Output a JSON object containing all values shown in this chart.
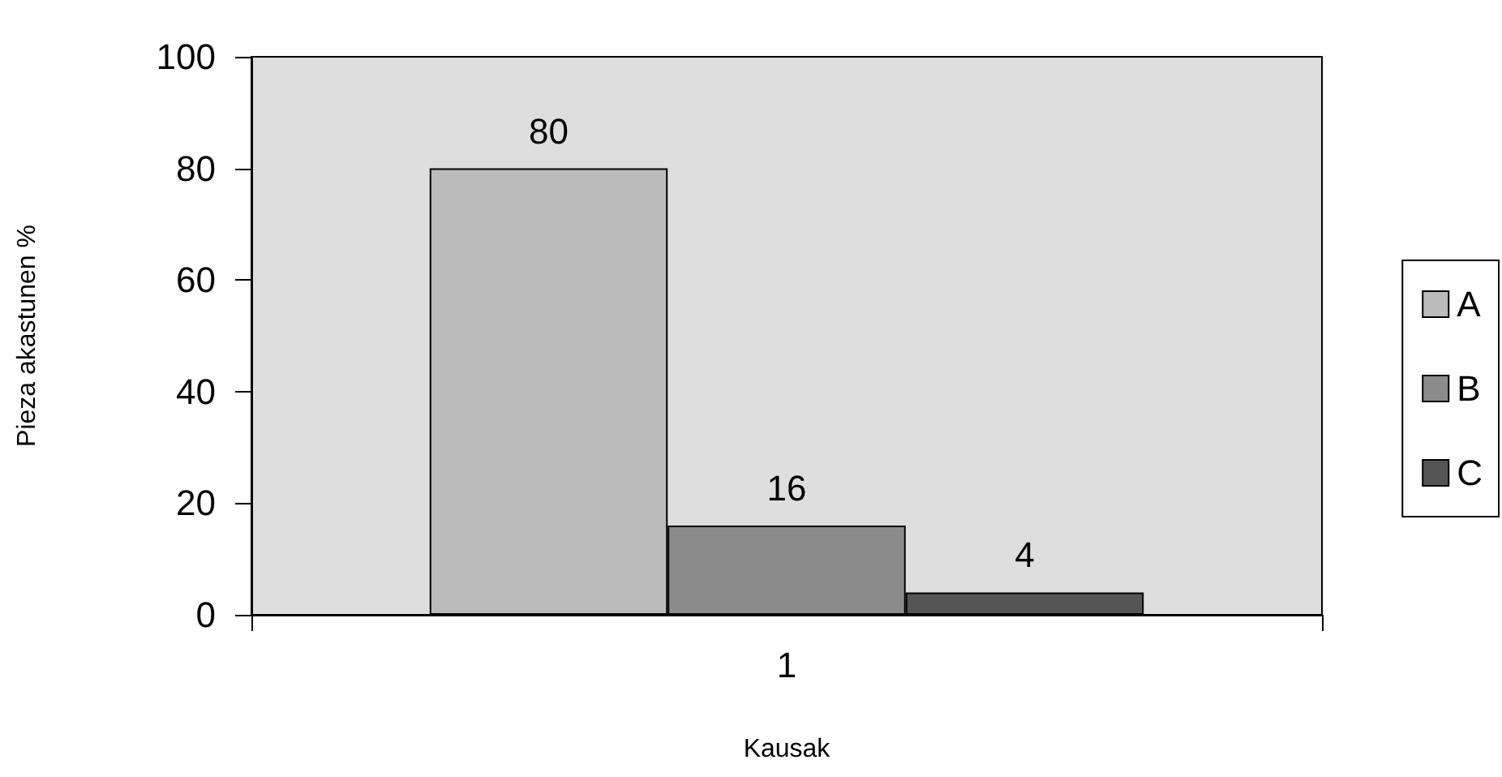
{
  "chart_data": {
    "type": "bar",
    "xlabel": "Kausak",
    "ylabel": "Pieza akastunen %",
    "categories": [
      "1"
    ],
    "series": [
      {
        "name": "A",
        "color": "#bbbbbb",
        "values": [
          80
        ]
      },
      {
        "name": "B",
        "color": "#8c8c8c",
        "values": [
          16
        ]
      },
      {
        "name": "C",
        "color": "#555555",
        "values": [
          4
        ]
      }
    ],
    "ylim": [
      0,
      100
    ],
    "yticks": [
      0,
      20,
      40,
      60,
      80,
      100
    ],
    "data_labels": true,
    "legend": "right"
  }
}
